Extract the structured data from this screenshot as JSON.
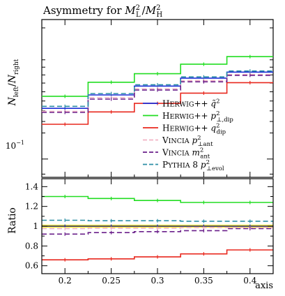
{
  "chart_data": [
    {
      "type": "line",
      "panel": "main",
      "title": "Asymmetry for M²L / M²H",
      "title_parts": {
        "lead": "Asymmetry for ",
        "m": "M",
        "sup1": "2",
        "sub1": "L",
        "sep": "/",
        "sup2": "2",
        "sub2": "H"
      },
      "ylabel": "N_left / N_right",
      "ylabel_parts": {
        "n1": "N",
        "s1": "left",
        "sep": "/",
        "n2": "N",
        "s2": "right"
      },
      "ytick_label": "10",
      "ytick_exp": "−1",
      "y_scale": "log",
      "xlim": [
        0.175,
        0.425
      ],
      "ylim": [
        0.088,
        0.265
      ],
      "x_edges": [
        0.175,
        0.225,
        0.275,
        0.325,
        0.375,
        0.425
      ],
      "legend_position": "lower-right",
      "series": [
        {
          "key": "herwig_q2",
          "legend": {
            "gen": "Herwig++",
            "sym": "q̃",
            "sup": "2",
            "sub": ""
          },
          "color": "#1f2fd6",
          "dash": "solid",
          "values": [
            0.1425,
            0.1565,
            0.1665,
            0.176,
            0.1835
          ]
        },
        {
          "key": "herwig_pt2dip",
          "legend": {
            "gen": "Herwig++",
            "sym": "p",
            "sup": "2",
            "sub": "⊥,dip"
          },
          "color": "#22dd22",
          "dash": "solid",
          "values": [
            0.155,
            0.171,
            0.1815,
            0.194,
            0.2045
          ]
        },
        {
          "key": "herwig_q2dip",
          "legend": {
            "gen": "Herwig++",
            "sym": "q",
            "sup": "2",
            "sub": "dip"
          },
          "color": "#e8281e",
          "dash": "solid",
          "values": [
            0.1275,
            0.139,
            0.1475,
            0.1585,
            0.1705
          ]
        },
        {
          "key": "vincia_pt2ant",
          "legend": {
            "gen": "Vincia",
            "sym": "p",
            "sup": "2",
            "sub": "⊥ant"
          },
          "color": "#f2b3c4",
          "dash": "dashed",
          "values": [
            0.1395,
            0.1535,
            0.1635,
            0.173,
            0.1805
          ]
        },
        {
          "key": "vincia_m2ant",
          "legend": {
            "gen": "Vincia",
            "sym": "m",
            "sup": "2",
            "sub": "ant"
          },
          "color": "#6a1f8a",
          "dash": "dashed",
          "values": [
            0.1385,
            0.152,
            0.162,
            0.1715,
            0.1795
          ]
        },
        {
          "key": "pythia8_pt2evol",
          "legend": {
            "gen": "Pythia 8",
            "sym": "p",
            "sup": "2",
            "sub": "⊥evol"
          },
          "color": "#2c8fa5",
          "dash": "dashed",
          "values": [
            0.1445,
            0.158,
            0.168,
            0.1775,
            0.185
          ]
        }
      ]
    },
    {
      "type": "line",
      "panel": "ratio",
      "ylabel": "Ratio",
      "xlabel": "axis",
      "xlim": [
        0.175,
        0.425
      ],
      "ylim": [
        0.52,
        1.48
      ],
      "yticks": [
        "0.6",
        "0.8",
        "1",
        "1.2",
        "1.4"
      ],
      "ytick_values": [
        0.6,
        0.8,
        1.0,
        1.2,
        1.4
      ],
      "xticks": [
        "0.2",
        "0.25",
        "0.3",
        "0.35",
        "0.4"
      ],
      "xtick_values": [
        0.2,
        0.25,
        0.3,
        0.35,
        0.4
      ],
      "x_edges": [
        0.175,
        0.225,
        0.275,
        0.325,
        0.375,
        0.425
      ],
      "reference_band": {
        "center": 1.0,
        "half_width": 0.015,
        "color": "#ffee33",
        "line_color": "#222222"
      },
      "series": [
        {
          "key": "herwig_q2",
          "color": "#1f2fd6",
          "dash": "solid",
          "values": [
            1.0,
            1.0,
            1.0,
            1.0,
            1.0
          ]
        },
        {
          "key": "herwig_pt2dip",
          "color": "#22dd22",
          "dash": "solid",
          "values": [
            1.3,
            1.28,
            1.26,
            1.24,
            1.24
          ]
        },
        {
          "key": "herwig_q2dip",
          "color": "#e8281e",
          "dash": "solid",
          "values": [
            0.66,
            0.67,
            0.69,
            0.72,
            0.76
          ]
        },
        {
          "key": "vincia_pt2ant",
          "color": "#f2b3c4",
          "dash": "dashed",
          "values": [
            0.975,
            0.98,
            0.98,
            0.985,
            0.985
          ]
        },
        {
          "key": "vincia_m2ant",
          "color": "#6a1f8a",
          "dash": "dashed",
          "values": [
            0.92,
            0.935,
            0.945,
            0.955,
            0.975
          ]
        },
        {
          "key": "pythia8_pt2evol",
          "color": "#2c8fa5",
          "dash": "dashed",
          "values": [
            1.06,
            1.055,
            1.055,
            1.05,
            1.05
          ]
        }
      ]
    }
  ]
}
